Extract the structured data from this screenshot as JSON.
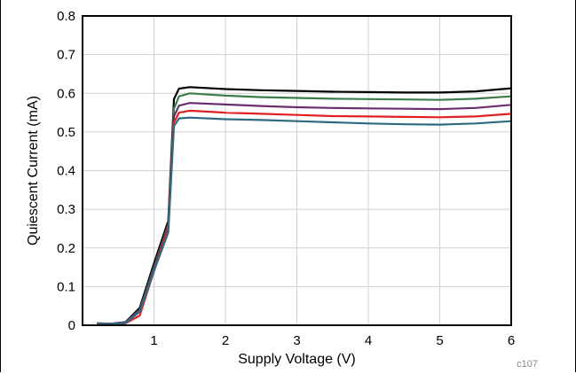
{
  "chart_data": {
    "type": "line",
    "xlabel": "Supply Voltage (V)",
    "ylabel": "Quiescent Current (mA)",
    "xlim": [
      0,
      6
    ],
    "ylim": [
      0,
      0.8
    ],
    "xticks": [
      1,
      2,
      3,
      4,
      5,
      6
    ],
    "yticks": [
      0,
      0.1,
      0.2,
      0.3,
      0.4,
      0.5,
      0.6,
      0.7,
      0.8
    ],
    "ytick_labels": [
      "0",
      "0.1",
      "0.2",
      "0.3",
      "0.4",
      "0.5",
      "0.6",
      "0.7",
      "0.8"
    ],
    "grid": true,
    "note": "c107",
    "series": [
      {
        "color": "#000000",
        "x": [
          0.2,
          0.4,
          0.6,
          0.8,
          1.0,
          1.2,
          1.28,
          1.35,
          1.5,
          2.0,
          2.5,
          3.0,
          3.5,
          4.0,
          4.5,
          5.0,
          5.5,
          6.0
        ],
        "values": [
          0.005,
          0.004,
          0.008,
          0.045,
          0.16,
          0.27,
          0.585,
          0.612,
          0.616,
          0.611,
          0.608,
          0.606,
          0.604,
          0.603,
          0.602,
          0.602,
          0.605,
          0.613
        ]
      },
      {
        "color": "#3d7d4c",
        "x": [
          0.2,
          0.4,
          0.6,
          0.8,
          1.0,
          1.2,
          1.28,
          1.35,
          1.5,
          2.0,
          2.5,
          3.0,
          3.5,
          4.0,
          4.5,
          5.0,
          5.5,
          6.0
        ],
        "values": [
          0.005,
          0.004,
          0.007,
          0.04,
          0.15,
          0.26,
          0.56,
          0.592,
          0.6,
          0.594,
          0.59,
          0.588,
          0.586,
          0.585,
          0.584,
          0.583,
          0.586,
          0.592
        ]
      },
      {
        "color": "#6b2d6e",
        "x": [
          0.2,
          0.4,
          0.6,
          0.8,
          1.0,
          1.2,
          1.28,
          1.35,
          1.5,
          2.0,
          2.5,
          3.0,
          3.5,
          4.0,
          4.5,
          5.0,
          5.5,
          6.0
        ],
        "values": [
          0.005,
          0.004,
          0.007,
          0.038,
          0.145,
          0.255,
          0.54,
          0.568,
          0.575,
          0.571,
          0.567,
          0.564,
          0.562,
          0.561,
          0.56,
          0.559,
          0.562,
          0.57
        ]
      },
      {
        "color": "#e02020",
        "x": [
          0.2,
          0.4,
          0.6,
          0.8,
          1.0,
          1.2,
          1.28,
          1.35,
          1.5,
          2.0,
          2.5,
          3.0,
          3.5,
          4.0,
          4.5,
          5.0,
          5.5,
          6.0
        ],
        "values": [
          0.004,
          0.003,
          0.005,
          0.025,
          0.14,
          0.25,
          0.525,
          0.55,
          0.555,
          0.55,
          0.547,
          0.544,
          0.541,
          0.54,
          0.539,
          0.538,
          0.54,
          0.547
        ]
      },
      {
        "color": "#2e6a80",
        "x": [
          0.2,
          0.4,
          0.6,
          0.8,
          1.0,
          1.2,
          1.28,
          1.35,
          1.5,
          2.0,
          2.5,
          3.0,
          3.5,
          4.0,
          4.5,
          5.0,
          5.5,
          6.0
        ],
        "values": [
          0.004,
          0.003,
          0.006,
          0.035,
          0.14,
          0.24,
          0.515,
          0.535,
          0.537,
          0.533,
          0.531,
          0.528,
          0.525,
          0.522,
          0.52,
          0.519,
          0.522,
          0.528
        ]
      }
    ]
  }
}
